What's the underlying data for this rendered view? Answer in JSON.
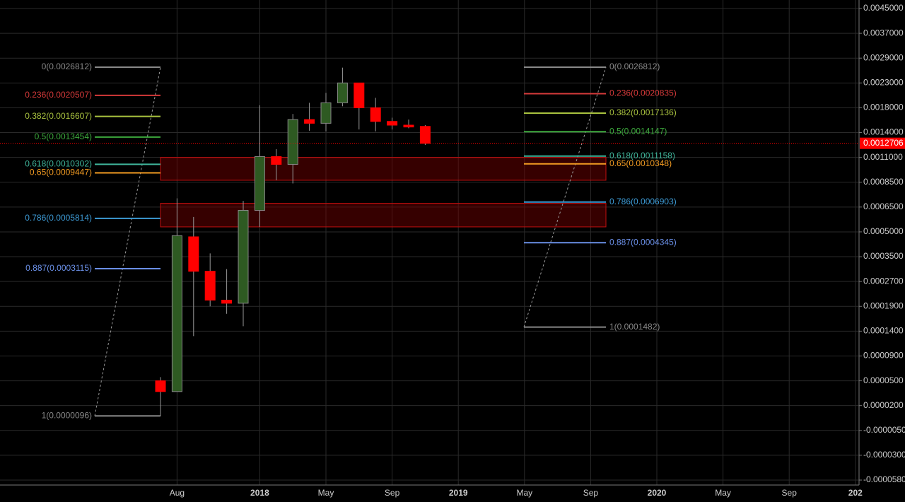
{
  "chart_data": {
    "type": "candlestick",
    "categories": [
      null,
      "Aug",
      null,
      null,
      null,
      null,
      "2018",
      null,
      null,
      null,
      "May",
      null,
      null,
      null,
      "Sep",
      null,
      null,
      null,
      "2019",
      null,
      null,
      null,
      "May",
      null,
      null,
      null,
      "Sep",
      null,
      null,
      null,
      "2020",
      null,
      null,
      null,
      "May",
      null,
      null,
      null,
      "Sep",
      null,
      null,
      null,
      "202"
    ],
    "open": [
      5e-05,
      3.7e-05,
      0.00047,
      0.000303,
      0.00021,
      0.0002,
      0.00063,
      0.00111,
      0.00103,
      0.00161,
      0.00155,
      0.0019,
      0.0023,
      0.0018,
      0.00158,
      0.00152,
      0.0015,
      null,
      null,
      null,
      null,
      null,
      null,
      null,
      null,
      null,
      null,
      null,
      null,
      null,
      null,
      null,
      null,
      null,
      null,
      null,
      null,
      null,
      null,
      null,
      null,
      null,
      null
    ],
    "high": [
      5.6e-05,
      0.00072,
      0.00059,
      0.00037,
      0.00031,
      0.0007,
      0.00185,
      0.0012,
      0.0017,
      0.0019,
      0.0021,
      0.00267,
      0.0023,
      0.002,
      0.00164,
      0.00161,
      0.00152,
      null,
      null,
      null,
      null,
      null,
      null,
      null,
      null,
      null,
      null,
      null,
      null,
      null,
      null,
      null,
      null,
      null,
      null,
      null,
      null,
      null,
      null,
      null,
      null,
      null,
      null
    ],
    "low": [
      9.6e-06,
      3.7e-05,
      0.00013,
      0.00019,
      0.000175,
      0.00015,
      0.00053,
      0.00087,
      0.00084,
      0.00143,
      0.00142,
      0.00183,
      0.00145,
      0.00142,
      0.00145,
      0.00147,
      0.00125,
      null,
      null,
      null,
      null,
      null,
      null,
      null,
      null,
      null,
      null,
      null,
      null,
      null,
      null,
      null,
      null,
      null,
      null,
      null,
      null,
      null,
      null,
      null,
      null,
      null,
      null
    ],
    "close": [
      3.7e-05,
      0.000477,
      0.000303,
      0.00021,
      0.0002,
      0.00063,
      0.00111,
      0.00103,
      0.00161,
      0.00155,
      0.0019,
      0.0023,
      0.0018,
      0.00158,
      0.00152,
      0.00149,
      0.00127,
      null,
      null,
      null,
      null,
      null,
      null,
      null,
      null,
      null,
      null,
      null,
      null,
      null,
      null,
      null,
      null,
      null,
      null,
      null,
      null,
      null,
      null,
      null,
      null,
      null,
      null
    ],
    "up_color": "#2e5a22",
    "down_color": "#ff0000",
    "ylim": [
      0.00477,
      -6.4e-05
    ],
    "yticks": [
      {
        "value": 0.0045,
        "label": "0.0045000"
      },
      {
        "value": 0.0037,
        "label": "0.0037000"
      },
      {
        "value": 0.0029,
        "label": "0.0029000"
      },
      {
        "value": 0.0023,
        "label": "0.0023000"
      },
      {
        "value": 0.0018,
        "label": "0.0018000"
      },
      {
        "value": 0.0014,
        "label": "0.0014000"
      },
      {
        "value": 0.0011,
        "label": "0.0011000"
      },
      {
        "value": 0.00085,
        "label": "0.0008500"
      },
      {
        "value": 0.00065,
        "label": "0.0006500"
      },
      {
        "value": 0.0005,
        "label": "0.0005000"
      },
      {
        "value": 0.00035,
        "label": "0.0003500"
      },
      {
        "value": 0.00027,
        "label": "0.0002700"
      },
      {
        "value": 0.00019,
        "label": "0.0001900"
      },
      {
        "value": 0.00014,
        "label": "0.0001400"
      },
      {
        "value": 9e-05,
        "label": "0.0000900"
      },
      {
        "value": 5e-05,
        "label": "0.0000500"
      },
      {
        "value": 2e-05,
        "label": "0.0000200"
      },
      {
        "value": -5e-06,
        "label": "-0.0000050"
      },
      {
        "value": -3e-05,
        "label": "-0.0000300"
      },
      {
        "value": -5.8e-05,
        "label": "-0.0000580"
      }
    ],
    "grid": true,
    "last_price": {
      "value": 0.0012706,
      "label": "0.0012706",
      "color": "#ff0000"
    },
    "zones": [
      [
        0.0011,
        0.00087
      ],
      [
        0.00068,
        0.00053
      ]
    ],
    "fib_left": [
      {
        "label": "0(0.0026812)",
        "value": 0.0026812,
        "color": "#888888"
      },
      {
        "label": "0.236(0.0020507)",
        "value": 0.0020507,
        "color": "#d63a3a"
      },
      {
        "label": "0.382(0.0016607)",
        "value": 0.0016607,
        "color": "#a9c23f"
      },
      {
        "label": "0.5(0.0013454)",
        "value": 0.0013454,
        "color": "#3daa3d"
      },
      {
        "label": "0.618(0.0010302)",
        "value": 0.0010302,
        "color": "#3fb59b"
      },
      {
        "label": "0.65(0.0009447)",
        "value": 0.0009447,
        "color": "#f29b22"
      },
      {
        "label": "0.786(0.0005814)",
        "value": 0.0005814,
        "color": "#3d9bd6"
      },
      {
        "label": "0.887(0.0003115)",
        "value": 0.0003115,
        "color": "#6a8fe6"
      },
      {
        "label": "1(0.0000096)",
        "value": 9.6e-06,
        "color": "#888888"
      }
    ],
    "fib_right": [
      {
        "label": "0(0.0026812)",
        "value": 0.0026812,
        "color": "#888888"
      },
      {
        "label": "0.236(0.0020835)",
        "value": 0.0020835,
        "color": "#d63a3a"
      },
      {
        "label": "0.382(0.0017136)",
        "value": 0.0017136,
        "color": "#a9c23f"
      },
      {
        "label": "0.5(0.0014147)",
        "value": 0.0014147,
        "color": "#3daa3d"
      },
      {
        "label": "0.618(0.0011158)",
        "value": 0.0011158,
        "color": "#3fb59b"
      },
      {
        "label": "0.65(0.0010348)",
        "value": 0.0010348,
        "color": "#f29b22"
      },
      {
        "label": "0.786(0.0006903)",
        "value": 0.0006903,
        "color": "#3d9bd6"
      },
      {
        "label": "0.887(0.0004345)",
        "value": 0.0004345,
        "color": "#6a8fe6"
      },
      {
        "label": "1(0.0001482)",
        "value": 0.0001482,
        "color": "#888888"
      }
    ]
  }
}
